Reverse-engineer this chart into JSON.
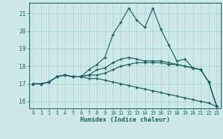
{
  "title": "",
  "xlabel": "Humidex (Indice chaleur)",
  "ylabel": "",
  "background_color": "#cce8e8",
  "grid_color": "#aacccc",
  "line_color": "#1a6060",
  "marker": "+",
  "xlim": [
    -0.5,
    23.5
  ],
  "ylim": [
    15.6,
    21.6
  ],
  "yticks": [
    16,
    17,
    18,
    19,
    20,
    21
  ],
  "xticks": [
    0,
    1,
    2,
    3,
    4,
    5,
    6,
    7,
    8,
    9,
    10,
    11,
    12,
    13,
    14,
    15,
    16,
    17,
    18,
    19,
    20,
    21,
    22,
    23
  ],
  "lines": [
    [
      17.0,
      17.0,
      17.1,
      17.4,
      17.5,
      17.4,
      17.4,
      17.8,
      18.1,
      18.5,
      19.8,
      20.5,
      21.3,
      20.6,
      20.2,
      21.3,
      20.1,
      19.2,
      18.3,
      18.4,
      17.9,
      17.8,
      17.1,
      15.7
    ],
    [
      17.0,
      17.0,
      17.1,
      17.4,
      17.5,
      17.4,
      17.4,
      17.5,
      17.8,
      17.9,
      18.2,
      18.4,
      18.5,
      18.4,
      18.3,
      18.3,
      18.3,
      18.2,
      18.1,
      18.0,
      17.9,
      17.8,
      17.1,
      15.7
    ],
    [
      17.0,
      17.0,
      17.1,
      17.4,
      17.5,
      17.4,
      17.4,
      17.3,
      17.3,
      17.2,
      17.1,
      17.0,
      16.9,
      16.8,
      16.7,
      16.6,
      16.5,
      16.4,
      16.3,
      16.2,
      16.1,
      16.0,
      15.9,
      15.7
    ],
    [
      17.0,
      17.0,
      17.1,
      17.4,
      17.5,
      17.4,
      17.4,
      17.5,
      17.5,
      17.6,
      17.8,
      18.0,
      18.1,
      18.2,
      18.2,
      18.2,
      18.2,
      18.1,
      18.1,
      18.0,
      17.9,
      17.8,
      17.1,
      15.7
    ]
  ]
}
